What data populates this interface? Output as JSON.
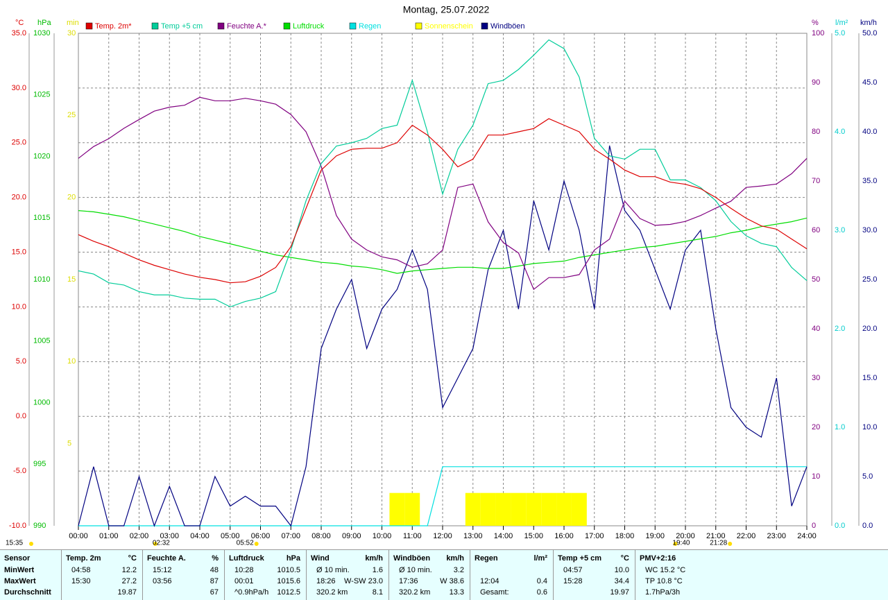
{
  "chart_data": {
    "type": "line",
    "title": "Montag, 25.07.2022",
    "x": [
      0,
      0.5,
      1,
      1.5,
      2,
      2.5,
      3,
      3.5,
      4,
      4.5,
      5,
      5.5,
      6,
      6.5,
      7,
      7.5,
      8,
      8.5,
      9,
      9.5,
      10,
      10.5,
      11,
      11.5,
      12,
      12.5,
      13,
      13.5,
      14,
      14.5,
      15,
      15.5,
      16,
      16.5,
      17,
      17.5,
      18,
      18.5,
      19,
      19.5,
      20,
      20.5,
      21,
      21.5,
      22,
      22.5,
      23,
      23.5,
      24
    ],
    "xlim": [
      0,
      24
    ],
    "xticks": [
      {
        "value": 0,
        "label": "00:00"
      },
      {
        "value": 1,
        "label": "01:00"
      },
      {
        "value": 2,
        "label": "02:00"
      },
      {
        "value": 3,
        "label": "03:00"
      },
      {
        "value": 4,
        "label": "04:00"
      },
      {
        "value": 5,
        "label": "05:00"
      },
      {
        "value": 6,
        "label": "06:00"
      },
      {
        "value": 7,
        "label": "07:00"
      },
      {
        "value": 8,
        "label": "08:00"
      },
      {
        "value": 9,
        "label": "09:00"
      },
      {
        "value": 10,
        "label": "10:00"
      },
      {
        "value": 11,
        "label": "11:00"
      },
      {
        "value": 12,
        "label": "12:00"
      },
      {
        "value": 13,
        "label": "13:00"
      },
      {
        "value": 14,
        "label": "14:00"
      },
      {
        "value": 15,
        "label": "15:00"
      },
      {
        "value": 16,
        "label": "16:00"
      },
      {
        "value": 17,
        "label": "17:00"
      },
      {
        "value": 18,
        "label": "18:00"
      },
      {
        "value": 19,
        "label": "19:00"
      },
      {
        "value": 20,
        "label": "20:00"
      },
      {
        "value": 21,
        "label": "21:00"
      },
      {
        "value": 22,
        "label": "22:00"
      },
      {
        "value": 23,
        "label": "23:00"
      },
      {
        "value": 24,
        "label": "24:00"
      }
    ],
    "grid": true,
    "axes": {
      "temp": {
        "label": "°C",
        "color": "#dd0000",
        "lim": [
          -10,
          35
        ],
        "ticks": [
          {
            "value": -10,
            "label": "-10.0"
          },
          {
            "value": -5,
            "label": "-5.0"
          },
          {
            "value": 0,
            "label": "0.0"
          },
          {
            "value": 5,
            "label": "5.0"
          },
          {
            "value": 10,
            "label": "10.0"
          },
          {
            "value": 15,
            "label": "15.0"
          },
          {
            "value": 20,
            "label": "20.0"
          },
          {
            "value": 25,
            "label": "25.0"
          },
          {
            "value": 30,
            "label": "30.0"
          },
          {
            "value": 35,
            "label": "35.0"
          }
        ]
      },
      "press": {
        "label": "hPa",
        "color": "#00bb00",
        "lim": [
          990,
          1030
        ],
        "ticks": [
          990,
          995,
          1000,
          1005,
          1010,
          1015,
          1020,
          1025,
          1030
        ]
      },
      "sun": {
        "label": "min",
        "color": "#dddd00",
        "lim": [
          0,
          30
        ],
        "ticks": [
          5,
          10,
          15,
          20,
          25,
          30
        ]
      },
      "hum": {
        "label": "%",
        "color": "#800080",
        "lim": [
          0,
          100
        ],
        "ticks": [
          0,
          10,
          20,
          30,
          40,
          50,
          60,
          70,
          80,
          90,
          100
        ]
      },
      "rain": {
        "label": "l/m²",
        "color": "#00cccc",
        "lim": [
          0,
          5
        ],
        "ticks": [
          {
            "value": 0,
            "label": "0.0"
          },
          {
            "value": 1,
            "label": "1.0"
          },
          {
            "value": 2,
            "label": "2.0"
          },
          {
            "value": 3,
            "label": "3.0"
          },
          {
            "value": 4,
            "label": "4.0"
          },
          {
            "value": 5,
            "label": "5.0"
          }
        ]
      },
      "wind": {
        "label": "km/h",
        "color": "#000080",
        "lim": [
          0,
          50
        ],
        "ticks": [
          {
            "value": 0,
            "label": "0.0"
          },
          {
            "value": 5,
            "label": "5.0"
          },
          {
            "value": 10,
            "label": "10.0"
          },
          {
            "value": 15,
            "label": "15.0"
          },
          {
            "value": 20,
            "label": "20.0"
          },
          {
            "value": 25,
            "label": "25.0"
          },
          {
            "value": 30,
            "label": "30.0"
          },
          {
            "value": 35,
            "label": "35.0"
          },
          {
            "value": 40,
            "label": "40.0"
          },
          {
            "value": 45,
            "label": "45.0"
          },
          {
            "value": 50,
            "label": "50.0"
          }
        ]
      }
    },
    "series": [
      {
        "name": "Temp. 2m*",
        "color": "#dd0000",
        "axis": "temp",
        "mark": "line",
        "values": [
          16.6,
          16.0,
          15.5,
          14.9,
          14.3,
          13.8,
          13.4,
          13.0,
          12.7,
          12.5,
          12.2,
          12.3,
          12.8,
          13.6,
          15.5,
          19.0,
          22.5,
          23.8,
          24.4,
          24.5,
          24.5,
          25.0,
          26.6,
          25.7,
          24.4,
          22.8,
          23.5,
          25.7,
          25.7,
          26.0,
          26.3,
          27.2,
          26.6,
          26.0,
          24.4,
          23.5,
          22.5,
          21.9,
          21.9,
          21.4,
          21.2,
          20.8,
          20.0,
          19.0,
          18.1,
          17.4,
          17.1,
          16.2,
          15.3
        ]
      },
      {
        "name": "Temp +5 cm",
        "color": "#00cc99",
        "axis": "temp",
        "mark": "line",
        "values": [
          13.3,
          13.0,
          12.2,
          12.0,
          11.4,
          11.1,
          11.1,
          10.8,
          10.7,
          10.7,
          10.0,
          10.5,
          10.8,
          11.4,
          15.2,
          19.7,
          23.1,
          24.7,
          25.0,
          25.4,
          26.3,
          26.6,
          30.7,
          26.0,
          20.3,
          24.4,
          26.6,
          30.4,
          30.7,
          31.7,
          33.0,
          34.4,
          33.6,
          31.0,
          25.4,
          23.8,
          23.5,
          24.4,
          24.4,
          21.6,
          21.6,
          20.9,
          19.7,
          17.8,
          16.5,
          15.8,
          15.5,
          13.6,
          12.4
        ]
      },
      {
        "name": "Feuchte A.*",
        "color": "#800080",
        "axis": "hum",
        "mark": "line",
        "values": [
          74.6,
          77,
          78.6,
          80.7,
          82.5,
          84.2,
          85,
          85.4,
          87,
          86.3,
          86.3,
          86.8,
          86.3,
          85.6,
          83.5,
          80,
          73,
          63,
          58.2,
          56,
          54.6,
          54,
          52.5,
          53.2,
          56,
          68.7,
          69.4,
          61.7,
          57.5,
          55.4,
          48,
          50.4,
          50.4,
          51,
          56,
          58.2,
          65.9,
          62.4,
          61,
          61.2,
          61.8,
          63,
          64.5,
          65.9,
          68.7,
          69,
          69.4,
          71.5,
          74.6
        ]
      },
      {
        "name": "Luftdruck",
        "color": "#00dd00",
        "axis": "press",
        "mark": "line",
        "values": [
          1015.6,
          1015.5,
          1015.3,
          1015.1,
          1014.8,
          1014.5,
          1014.2,
          1013.9,
          1013.5,
          1013.2,
          1012.9,
          1012.6,
          1012.3,
          1012.0,
          1011.8,
          1011.6,
          1011.4,
          1011.3,
          1011.1,
          1011.0,
          1010.8,
          1010.5,
          1010.7,
          1010.8,
          1010.9,
          1011.0,
          1011.0,
          1010.9,
          1010.9,
          1011.1,
          1011.3,
          1011.4,
          1011.5,
          1011.8,
          1012.0,
          1012.2,
          1012.4,
          1012.6,
          1012.7,
          1012.9,
          1013.1,
          1013.3,
          1013.5,
          1013.8,
          1014.0,
          1014.3,
          1014.5,
          1014.7,
          1015.0
        ]
      },
      {
        "name": "Regen",
        "color": "#00e0e0",
        "axis": "rain",
        "mark": "line",
        "values": [
          0,
          0,
          0,
          0,
          0,
          0,
          0,
          0,
          0,
          0,
          0,
          0,
          0,
          0,
          0,
          0,
          0,
          0,
          0,
          0,
          0,
          0,
          0,
          0,
          0.6,
          0.6,
          0.6,
          0.6,
          0.6,
          0.6,
          0.6,
          0.6,
          0.6,
          0.6,
          0.6,
          0.6,
          0.6,
          0.6,
          0.6,
          0.6,
          0.6,
          0.6,
          0.6,
          0.6,
          0.6,
          0.6,
          0.6,
          0.6,
          0.6
        ]
      },
      {
        "name": "Sonnenschein",
        "color": "#ffff00",
        "axis": "sun",
        "mark": "bar",
        "values": [
          0,
          0,
          0,
          0,
          0,
          0,
          0,
          0,
          0,
          0,
          0,
          0,
          0,
          0,
          0,
          0,
          0,
          0,
          0,
          0,
          0,
          2,
          2,
          0,
          0,
          0,
          2,
          2,
          2,
          2,
          2,
          2,
          2,
          2,
          0,
          0,
          0,
          0,
          0,
          0,
          0,
          0,
          0,
          0,
          0,
          0,
          0,
          0,
          0
        ]
      },
      {
        "name": "Windböen",
        "color": "#000080",
        "axis": "wind",
        "mark": "line",
        "values": [
          0,
          6,
          0,
          0,
          5,
          0,
          4,
          0,
          0,
          5,
          2,
          3,
          2,
          2,
          0,
          6,
          18,
          22,
          25,
          18,
          22,
          24,
          28,
          24,
          12,
          15,
          18,
          26,
          30,
          22,
          33,
          28,
          35,
          30,
          22,
          38.6,
          32,
          30,
          26,
          22,
          28,
          30,
          20,
          12,
          10,
          9,
          15,
          2,
          6
        ]
      }
    ],
    "corner_note": "15:35",
    "sun_moon": [
      {
        "x": 2.533,
        "label": "02:32"
      },
      {
        "x": 5.867,
        "label": "05:52"
      },
      {
        "x": 19.667,
        "label": "19:40"
      },
      {
        "x": 21.467,
        "label": "21:28"
      }
    ]
  },
  "stats": {
    "rowlabels": [
      "Sensor",
      "MinWert",
      "MaxWert",
      "Durchschnitt"
    ],
    "columns": [
      {
        "head": "Temp. 2m",
        "unit": "°C",
        "cells": [
          {
            "t": "04:58",
            "v": "12.2"
          },
          {
            "t": "15:30",
            "v": "27.2"
          },
          {
            "v": "19.87"
          }
        ]
      },
      {
        "head": "Feuchte A.",
        "unit": "%",
        "cells": [
          {
            "t": "15:12",
            "v": "48"
          },
          {
            "t": "03:56",
            "v": "87"
          },
          {
            "v": "67"
          }
        ]
      },
      {
        "head": "Luftdruck",
        "unit": "hPa",
        "cells": [
          {
            "t": "10:28",
            "v": "1010.5"
          },
          {
            "t": "00:01",
            "v": "1015.6"
          },
          {
            "t": "^0.9hPa/h",
            "v": "1012.5"
          }
        ]
      },
      {
        "head": "Wind",
        "unit": "km/h",
        "cells": [
          {
            "t": "Ø 10 min.",
            "v": "1.6"
          },
          {
            "t": "18:26",
            "v": "W-SW 23.0"
          },
          {
            "t": "320.2 km",
            "v": "8.1"
          }
        ]
      },
      {
        "head": "Windböen",
        "unit": "km/h",
        "cells": [
          {
            "t": "Ø 10 min.",
            "v": "3.2"
          },
          {
            "t": "17:36",
            "v": "W 38.6"
          },
          {
            "t": "320.2 km",
            "v": "13.3"
          }
        ]
      },
      {
        "head": "Regen",
        "unit": "l/m²",
        "cells": [
          {},
          {
            "t": "12:04",
            "v": "0.4"
          },
          {
            "t": "Gesamt:",
            "v": "0.6"
          }
        ]
      },
      {
        "head": "Temp +5 cm",
        "unit": "°C",
        "cells": [
          {
            "t": "04:57",
            "v": "10.0"
          },
          {
            "t": "15:28",
            "v": "34.4"
          },
          {
            "v": "19.97"
          }
        ]
      },
      {
        "head": "PMV+2:16",
        "cells": [
          {
            "t": "WC 15.2 °C"
          },
          {
            "t": "TP 10.8 °C"
          },
          {
            "t": "1.7hPa/3h"
          }
        ]
      }
    ]
  }
}
